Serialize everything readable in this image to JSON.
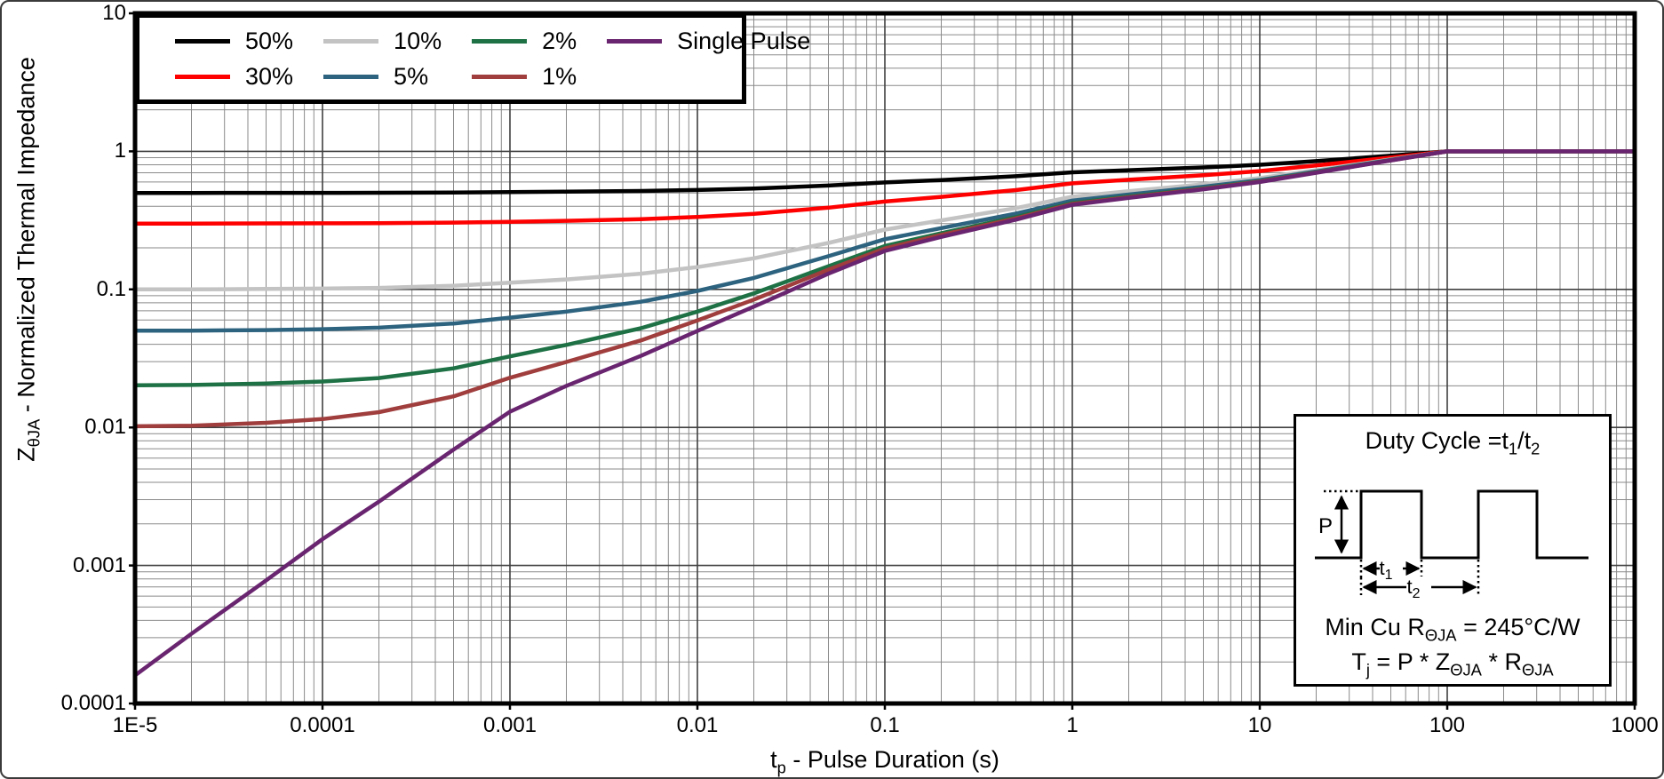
{
  "chart_data": {
    "type": "line",
    "x_scale": "log",
    "y_scale": "log",
    "xlim": [
      1e-05,
      1000
    ],
    "ylim": [
      0.0001,
      10
    ],
    "grid": "log-minor-and-major",
    "legend_position": "top-left",
    "x_ticks": [
      {
        "v": 1e-05,
        "label": "1E-5"
      },
      {
        "v": 0.0001,
        "label": "0.0001"
      },
      {
        "v": 0.001,
        "label": "0.001"
      },
      {
        "v": 0.01,
        "label": "0.01"
      },
      {
        "v": 0.1,
        "label": "0.1"
      },
      {
        "v": 1,
        "label": "1"
      },
      {
        "v": 10,
        "label": "10"
      },
      {
        "v": 100,
        "label": "100"
      },
      {
        "v": 1000,
        "label": "1000"
      }
    ],
    "y_ticks": [
      {
        "v": 10,
        "label": "10"
      },
      {
        "v": 1,
        "label": "1"
      },
      {
        "v": 0.1,
        "label": "0.1"
      },
      {
        "v": 0.01,
        "label": "0.01"
      },
      {
        "v": 0.001,
        "label": "0.001"
      },
      {
        "v": 0.0001,
        "label": "0.0001"
      }
    ],
    "x": [
      1e-05,
      2e-05,
      5e-05,
      0.0001,
      0.0002,
      0.0005,
      0.001,
      0.002,
      0.005,
      0.01,
      0.02,
      0.05,
      0.1,
      0.2,
      0.5,
      1,
      2,
      5,
      10,
      20,
      50,
      100,
      200,
      500,
      1000
    ],
    "series": [
      {
        "name": "50%",
        "color": "#000000",
        "values": [
          0.5,
          0.5,
          0.5004,
          0.5008,
          0.5015,
          0.5035,
          0.5065,
          0.51,
          0.5165,
          0.525,
          0.5375,
          0.565,
          0.595,
          0.62,
          0.66,
          0.705,
          0.73,
          0.765,
          0.8,
          0.85,
          0.93,
          1.0,
          1.0,
          1.0,
          1.0
        ]
      },
      {
        "name": "30%",
        "color": "#fe0000",
        "values": [
          0.3,
          0.3,
          0.3005,
          0.3011,
          0.302,
          0.3048,
          0.309,
          0.314,
          0.323,
          0.335,
          0.353,
          0.391,
          0.433,
          0.468,
          0.524,
          0.587,
          0.622,
          0.671,
          0.72,
          0.79,
          0.902,
          1.0,
          1.0,
          1.0,
          1.0
        ]
      },
      {
        "name": "10%",
        "color": "#c3c3c3",
        "values": [
          0.1,
          0.1,
          0.1007,
          0.1014,
          0.1026,
          0.1062,
          0.112,
          0.118,
          0.13,
          0.145,
          0.168,
          0.217,
          0.271,
          0.316,
          0.388,
          0.469,
          0.514,
          0.577,
          0.64,
          0.73,
          0.874,
          1.0,
          1.0,
          1.0,
          1.0
        ]
      },
      {
        "name": "5%",
        "color": "#2d637f",
        "values": [
          0.0502,
          0.0503,
          0.0507,
          0.0515,
          0.0528,
          0.0566,
          0.0624,
          0.069,
          0.0814,
          0.0975,
          0.121,
          0.174,
          0.231,
          0.278,
          0.354,
          0.44,
          0.487,
          0.554,
          0.62,
          0.715,
          0.867,
          1.0,
          1.0,
          1.0,
          1.0
        ]
      },
      {
        "name": "2%",
        "color": "#1e7145",
        "values": [
          0.0202,
          0.0203,
          0.0208,
          0.0215,
          0.0228,
          0.0268,
          0.0327,
          0.0396,
          0.0523,
          0.069,
          0.0935,
          0.147,
          0.206,
          0.255,
          0.334,
          0.422,
          0.471,
          0.539,
          0.608,
          0.706,
          0.863,
          1.0,
          1.0,
          1.0,
          1.0
        ]
      },
      {
        "name": "1%",
        "color": "#a03d3d",
        "values": [
          0.0102,
          0.0103,
          0.0108,
          0.0115,
          0.0129,
          0.0168,
          0.0229,
          0.0298,
          0.0427,
          0.0595,
          0.0843,
          0.139,
          0.198,
          0.248,
          0.327,
          0.416,
          0.465,
          0.535,
          0.604,
          0.703,
          0.861,
          1.0,
          1.0,
          1.0,
          1.0
        ]
      },
      {
        "name": "Single Pulse",
        "color": "#69256f",
        "values": [
          0.00016,
          0.00032,
          0.00078,
          0.00155,
          0.0029,
          0.0069,
          0.013,
          0.02,
          0.033,
          0.05,
          0.075,
          0.13,
          0.19,
          0.24,
          0.32,
          0.41,
          0.46,
          0.53,
          0.6,
          0.7,
          0.86,
          1.0,
          1.0,
          1.0,
          1.0
        ]
      }
    ],
    "legend_order": [
      "50%",
      "10%",
      "2%",
      "Single Pulse",
      "30%",
      "5%",
      "1%"
    ]
  },
  "axes": {
    "x_title_parts": [
      {
        "t": "t"
      },
      {
        "s": "p"
      },
      {
        "t": " - Pulse Duration (s)"
      }
    ],
    "y_title_parts": [
      {
        "t": "Z"
      },
      {
        "s": "θJA"
      },
      {
        "t": " - Normalized Thermal Impedance"
      }
    ]
  },
  "inset": {
    "title_parts": [
      {
        "t": "Duty Cycle =t"
      },
      {
        "s": "1"
      },
      {
        "t": "/t"
      },
      {
        "s": "2"
      }
    ],
    "waveform": {
      "p_label": "P",
      "t1_base": "t",
      "t1_sub": "1",
      "t2_base": "t",
      "t2_sub": "2"
    },
    "formula_lines": [
      [
        {
          "t": "Min Cu R"
        },
        {
          "s": "ΘJA"
        },
        {
          "t": " = 245°C/W"
        }
      ],
      [
        {
          "t": "T"
        },
        {
          "s": "j"
        },
        {
          "t": " = P * Z"
        },
        {
          "s": "ΘJA"
        },
        {
          "t": " * R"
        },
        {
          "s": "ΘJA"
        }
      ]
    ]
  }
}
